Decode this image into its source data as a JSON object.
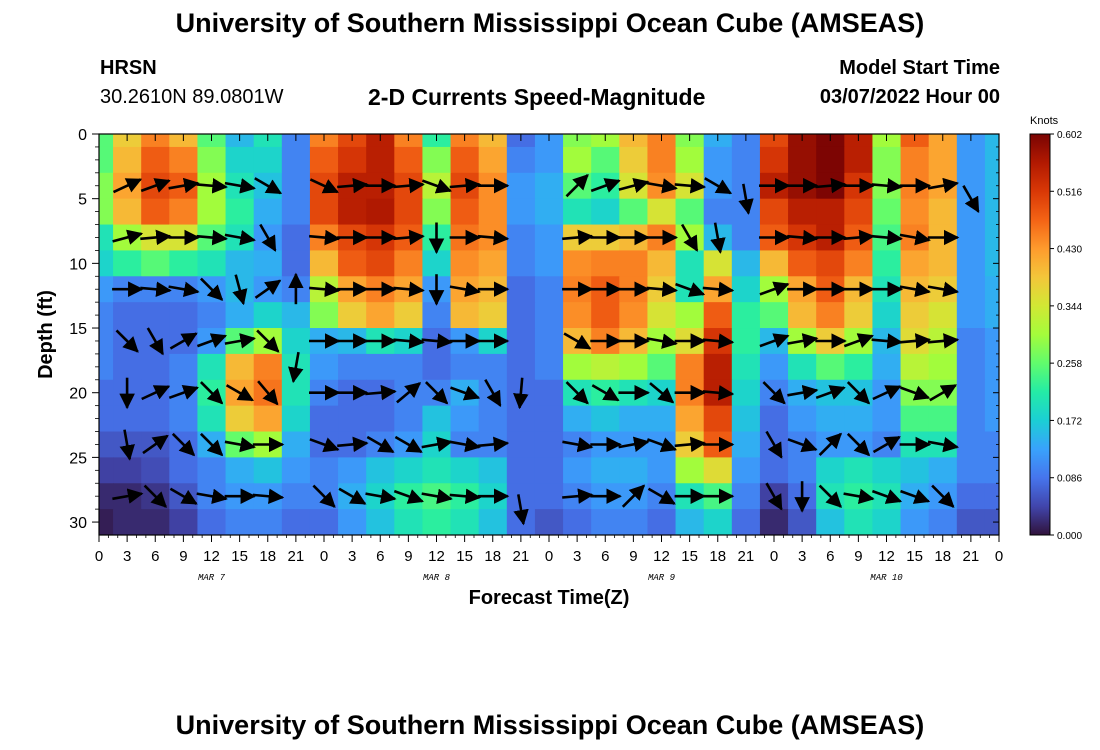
{
  "page": {
    "title": "University of Southern Mississippi Ocean Cube (AMSEAS)",
    "footer_title": "University of Southern Mississippi Ocean Cube (AMSEAS)",
    "station": "HRSN",
    "coords": "30.2610N  89.0801W",
    "subtitle": "2-D Currents Speed-Magnitude",
    "start_label": "Model Start Time",
    "start_value": "03/07/2022 Hour 00"
  },
  "chart_data": {
    "type": "heatmap",
    "title": "2-D Currents Speed-Magnitude",
    "xlabel": "Forecast Time(Z)",
    "ylabel": "Depth (ft)",
    "xlim": [
      0,
      96
    ],
    "ylim": [
      0,
      31
    ],
    "x_tick_labels": [
      "0",
      "3",
      "6",
      "9",
      "12",
      "15",
      "18",
      "21",
      "0",
      "3",
      "6",
      "9",
      "12",
      "15",
      "18",
      "21",
      "0",
      "3",
      "6",
      "9",
      "12",
      "15",
      "18",
      "21",
      "0",
      "3",
      "6",
      "9",
      "12",
      "15",
      "18",
      "21",
      "0"
    ],
    "y_ticks": [
      0,
      5,
      10,
      15,
      20,
      25,
      30
    ],
    "day_labels": [
      {
        "hour": 12,
        "label": "MAR 7"
      },
      {
        "hour": 36,
        "label": "MAR 8"
      },
      {
        "hour": 60,
        "label": "MAR 9"
      },
      {
        "hour": 84,
        "label": "MAR 10"
      }
    ],
    "colorbar": {
      "label": "Knots",
      "min": 0.0,
      "max": 0.602,
      "tick_labels": [
        "0.602",
        "0.516",
        "0.430",
        "0.344",
        "0.258",
        "0.172",
        "0.086",
        "0.000"
      ],
      "colors": [
        "#30123b",
        "#4145ab",
        "#4675ed",
        "#39a2fc",
        "#1bcfd4",
        "#24eca6",
        "#61fc6c",
        "#a4fc3b",
        "#d1e834",
        "#f3c63a",
        "#fe9b2d",
        "#f36315",
        "#d93806",
        "#b11901",
        "#7a0403"
      ]
    },
    "speed_field": {
      "columns_hours": [
        0,
        3,
        6,
        9,
        12,
        15,
        18,
        21,
        24,
        27,
        30,
        33,
        36,
        39,
        42,
        45,
        48,
        51,
        54,
        57,
        60,
        63,
        66,
        69,
        72,
        75,
        78,
        81,
        84,
        87,
        90,
        93,
        96
      ],
      "rows_depth_ft": [
        0,
        2,
        4,
        6,
        8,
        10,
        12,
        14,
        16,
        18,
        20,
        22,
        24,
        26,
        28,
        30
      ],
      "rows": [
        [
          0.25,
          0.38,
          0.45,
          0.4,
          0.25,
          0.15,
          0.2,
          0.1,
          0.45,
          0.5,
          0.55,
          0.45,
          0.22,
          0.45,
          0.4,
          0.08,
          0.12,
          0.28,
          0.3,
          0.4,
          0.45,
          0.28,
          0.14,
          0.1,
          0.5,
          0.58,
          0.6,
          0.55,
          0.3,
          0.48,
          0.42,
          0.12,
          0.15
        ],
        [
          0.25,
          0.4,
          0.48,
          0.45,
          0.28,
          0.18,
          0.18,
          0.1,
          0.48,
          0.52,
          0.55,
          0.48,
          0.28,
          0.48,
          0.42,
          0.1,
          0.12,
          0.3,
          0.25,
          0.38,
          0.45,
          0.3,
          0.12,
          0.1,
          0.52,
          0.58,
          0.6,
          0.55,
          0.28,
          0.45,
          0.42,
          0.12,
          0.15
        ],
        [
          0.28,
          0.42,
          0.5,
          0.48,
          0.3,
          0.2,
          0.16,
          0.1,
          0.5,
          0.55,
          0.55,
          0.5,
          0.32,
          0.5,
          0.44,
          0.12,
          0.14,
          0.25,
          0.22,
          0.35,
          0.44,
          0.35,
          0.12,
          0.1,
          0.55,
          0.58,
          0.6,
          0.52,
          0.28,
          0.45,
          0.42,
          0.12,
          0.15
        ],
        [
          0.28,
          0.4,
          0.48,
          0.45,
          0.3,
          0.22,
          0.14,
          0.1,
          0.5,
          0.55,
          0.56,
          0.5,
          0.28,
          0.48,
          0.44,
          0.12,
          0.14,
          0.2,
          0.18,
          0.25,
          0.35,
          0.25,
          0.1,
          0.1,
          0.5,
          0.55,
          0.55,
          0.5,
          0.26,
          0.44,
          0.4,
          0.12,
          0.15
        ],
        [
          0.2,
          0.3,
          0.35,
          0.35,
          0.25,
          0.2,
          0.12,
          0.08,
          0.45,
          0.5,
          0.52,
          0.48,
          0.22,
          0.46,
          0.44,
          0.1,
          0.12,
          0.38,
          0.38,
          0.4,
          0.45,
          0.3,
          0.15,
          0.1,
          0.48,
          0.52,
          0.55,
          0.48,
          0.24,
          0.45,
          0.4,
          0.12,
          0.15
        ],
        [
          0.18,
          0.22,
          0.25,
          0.22,
          0.2,
          0.15,
          0.14,
          0.08,
          0.4,
          0.48,
          0.5,
          0.45,
          0.18,
          0.44,
          0.42,
          0.1,
          0.12,
          0.44,
          0.45,
          0.45,
          0.4,
          0.2,
          0.35,
          0.15,
          0.4,
          0.48,
          0.5,
          0.45,
          0.22,
          0.42,
          0.4,
          0.12,
          0.15
        ],
        [
          0.12,
          0.1,
          0.1,
          0.1,
          0.12,
          0.15,
          0.12,
          0.1,
          0.32,
          0.42,
          0.45,
          0.42,
          0.12,
          0.42,
          0.4,
          0.08,
          0.1,
          0.45,
          0.48,
          0.45,
          0.38,
          0.2,
          0.42,
          0.18,
          0.3,
          0.42,
          0.48,
          0.4,
          0.2,
          0.4,
          0.38,
          0.12,
          0.14
        ],
        [
          0.1,
          0.08,
          0.08,
          0.08,
          0.1,
          0.14,
          0.18,
          0.15,
          0.28,
          0.38,
          0.42,
          0.38,
          0.1,
          0.4,
          0.38,
          0.08,
          0.1,
          0.44,
          0.48,
          0.44,
          0.35,
          0.3,
          0.48,
          0.22,
          0.25,
          0.4,
          0.45,
          0.38,
          0.18,
          0.38,
          0.35,
          0.12,
          0.14
        ],
        [
          0.1,
          0.08,
          0.08,
          0.08,
          0.12,
          0.25,
          0.3,
          0.18,
          0.14,
          0.15,
          0.2,
          0.18,
          0.08,
          0.12,
          0.18,
          0.08,
          0.1,
          0.4,
          0.45,
          0.4,
          0.3,
          0.36,
          0.52,
          0.22,
          0.15,
          0.3,
          0.38,
          0.3,
          0.15,
          0.36,
          0.32,
          0.1,
          0.12
        ],
        [
          0.1,
          0.08,
          0.08,
          0.1,
          0.2,
          0.4,
          0.45,
          0.2,
          0.12,
          0.1,
          0.1,
          0.1,
          0.08,
          0.1,
          0.1,
          0.08,
          0.1,
          0.3,
          0.32,
          0.3,
          0.25,
          0.45,
          0.55,
          0.2,
          0.12,
          0.2,
          0.25,
          0.22,
          0.14,
          0.32,
          0.3,
          0.1,
          0.12
        ],
        [
          0.08,
          0.08,
          0.08,
          0.1,
          0.22,
          0.42,
          0.46,
          0.2,
          0.1,
          0.08,
          0.08,
          0.1,
          0.1,
          0.14,
          0.1,
          0.08,
          0.08,
          0.2,
          0.22,
          0.2,
          0.18,
          0.45,
          0.55,
          0.18,
          0.1,
          0.14,
          0.16,
          0.16,
          0.12,
          0.28,
          0.28,
          0.1,
          0.12
        ],
        [
          0.08,
          0.08,
          0.08,
          0.1,
          0.2,
          0.38,
          0.42,
          0.18,
          0.08,
          0.08,
          0.08,
          0.1,
          0.16,
          0.12,
          0.1,
          0.08,
          0.08,
          0.14,
          0.16,
          0.14,
          0.14,
          0.42,
          0.5,
          0.16,
          0.08,
          0.12,
          0.14,
          0.14,
          0.12,
          0.24,
          0.24,
          0.1,
          0.12
        ],
        [
          0.06,
          0.06,
          0.06,
          0.08,
          0.14,
          0.26,
          0.3,
          0.14,
          0.08,
          0.08,
          0.1,
          0.12,
          0.18,
          0.1,
          0.1,
          0.08,
          0.08,
          0.1,
          0.12,
          0.12,
          0.12,
          0.38,
          0.48,
          0.14,
          0.08,
          0.1,
          0.12,
          0.12,
          0.1,
          0.2,
          0.2,
          0.1,
          0.1
        ],
        [
          0.04,
          0.04,
          0.05,
          0.08,
          0.1,
          0.14,
          0.16,
          0.12,
          0.1,
          0.12,
          0.16,
          0.18,
          0.2,
          0.18,
          0.16,
          0.08,
          0.08,
          0.12,
          0.14,
          0.14,
          0.12,
          0.3,
          0.36,
          0.12,
          0.08,
          0.1,
          0.18,
          0.2,
          0.18,
          0.16,
          0.14,
          0.1,
          0.1
        ],
        [
          0.02,
          0.02,
          0.03,
          0.06,
          0.1,
          0.12,
          0.12,
          0.1,
          0.1,
          0.14,
          0.18,
          0.22,
          0.24,
          0.22,
          0.18,
          0.08,
          0.08,
          0.1,
          0.12,
          0.12,
          0.1,
          0.2,
          0.24,
          0.1,
          0.04,
          0.08,
          0.2,
          0.22,
          0.2,
          0.14,
          0.12,
          0.08,
          0.08
        ],
        [
          0.01,
          0.02,
          0.02,
          0.04,
          0.08,
          0.1,
          0.1,
          0.08,
          0.08,
          0.12,
          0.16,
          0.2,
          0.22,
          0.2,
          0.16,
          0.08,
          0.06,
          0.08,
          0.1,
          0.1,
          0.08,
          0.15,
          0.18,
          0.08,
          0.02,
          0.06,
          0.16,
          0.2,
          0.18,
          0.12,
          0.1,
          0.06,
          0.06
        ]
      ]
    },
    "vectors": {
      "depth_rows_ft": [
        4,
        8,
        12,
        16,
        20,
        24,
        28
      ],
      "columns_hours": [
        0,
        3,
        6,
        9,
        12,
        15,
        18,
        21,
        24,
        27,
        30,
        33,
        36,
        39,
        42,
        45,
        48,
        51,
        54,
        57,
        60,
        63,
        66,
        69,
        72,
        75,
        78,
        81,
        84,
        87,
        90,
        93,
        96
      ],
      "directions_deg": [
        [
          30,
          25,
          20,
          10,
          -5,
          -10,
          -30,
          null,
          -25,
          5,
          0,
          5,
          -20,
          5,
          0,
          null,
          null,
          45,
          20,
          15,
          -10,
          -5,
          -30,
          null,
          0,
          0,
          5,
          0,
          -5,
          0,
          10,
          null,
          null
        ],
        [
          20,
          15,
          5,
          0,
          -5,
          -10,
          -60,
          null,
          -5,
          0,
          0,
          5,
          -90,
          0,
          -5,
          null,
          null,
          5,
          0,
          0,
          0,
          -60,
          -80,
          null,
          0,
          -5,
          0,
          5,
          -5,
          -10,
          0,
          null,
          null
        ],
        [
          0,
          0,
          -5,
          -10,
          -45,
          -75,
          35,
          null,
          -5,
          0,
          0,
          -5,
          -90,
          -10,
          0,
          null,
          null,
          0,
          0,
          0,
          -5,
          -20,
          -5,
          null,
          20,
          0,
          0,
          0,
          0,
          -10,
          -10,
          null,
          null
        ],
        [
          -20,
          -45,
          -60,
          30,
          20,
          10,
          -45,
          null,
          0,
          0,
          0,
          -5,
          -5,
          0,
          0,
          null,
          null,
          -30,
          0,
          0,
          -10,
          0,
          -5,
          null,
          20,
          10,
          0,
          20,
          -5,
          5,
          5,
          null,
          null
        ],
        [
          -70,
          -90,
          25,
          20,
          -45,
          -30,
          -50,
          null,
          0,
          0,
          5,
          40,
          -45,
          -20,
          -60,
          null,
          null,
          -45,
          -30,
          0,
          -40,
          0,
          -5,
          null,
          -45,
          10,
          20,
          -45,
          25,
          -20,
          30,
          null,
          null
        ],
        [
          -60,
          -80,
          35,
          -45,
          -45,
          -10,
          0,
          null,
          -20,
          5,
          -30,
          -30,
          10,
          -10,
          5,
          null,
          null,
          -10,
          0,
          10,
          -20,
          5,
          0,
          null,
          -60,
          -20,
          45,
          -45,
          30,
          0,
          -10,
          null,
          null
        ],
        [
          -30,
          10,
          -45,
          -30,
          -10,
          0,
          -5,
          null,
          -45,
          -30,
          -10,
          -20,
          -10,
          -5,
          0,
          null,
          null,
          5,
          0,
          45,
          -30,
          0,
          0,
          null,
          -60,
          -90,
          -45,
          -10,
          -20,
          -20,
          -45,
          null,
          null
        ]
      ],
      "extra_column_arrows": [
        {
          "hour": 21,
          "depth_ft": 12,
          "direction_deg": 90
        },
        {
          "hour": 21,
          "depth_ft": 18,
          "direction_deg": -100
        },
        {
          "hour": 69,
          "depth_ft": 5,
          "direction_deg": -80
        },
        {
          "hour": 93,
          "depth_ft": 5,
          "direction_deg": -60
        },
        {
          "hour": 45,
          "depth_ft": 20,
          "direction_deg": -95
        },
        {
          "hour": 45,
          "depth_ft": 29,
          "direction_deg": -80
        }
      ]
    }
  }
}
